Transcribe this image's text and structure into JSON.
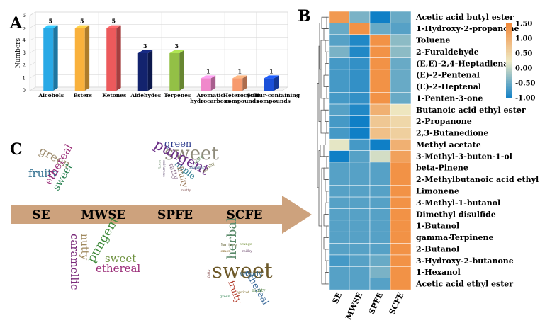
{
  "panel_labels": {
    "a": "A",
    "b": "B",
    "c": "C"
  },
  "chart_data": [
    {
      "panel": "A",
      "type": "bar",
      "title": "",
      "xlabel": "",
      "ylabel": "Numbers",
      "ylim": [
        0,
        6
      ],
      "yticks": [
        0,
        1,
        2,
        3,
        4,
        5,
        6
      ],
      "grid": true,
      "legend": "none",
      "categories": [
        "Alcohols",
        "Esters",
        "Ketones",
        "Aldehydes",
        "Terpenes",
        "Aromatic hydrocarbons",
        "Heterocyclic compounds",
        "Sulfur-containing compounds"
      ],
      "values": [
        5,
        5,
        5,
        3,
        3,
        1,
        1,
        1
      ],
      "value_labels": [
        "5",
        "5",
        "5",
        "3",
        "3",
        "1",
        "1",
        "1"
      ],
      "category_labels": [
        [
          "Alcohols"
        ],
        [
          "Esters"
        ],
        [
          "Ketones"
        ],
        [
          "Aldehydes"
        ],
        [
          "Terpenes"
        ],
        [
          "Aromatic",
          "hydrocarbons"
        ],
        [
          "Heterocyclic",
          "compounds"
        ],
        [
          "Sulfur-containing",
          "compounds"
        ]
      ],
      "colors": [
        "#29a9e6",
        "#f9b13c",
        "#ec5a5c",
        "#13236e",
        "#93c046",
        "#f088cb",
        "#f79a6e",
        "#1a4fd8"
      ]
    },
    {
      "panel": "B",
      "type": "heatmap",
      "title": "",
      "columns": [
        "SE",
        "MWSE",
        "SPFE",
        "SCFE"
      ],
      "rows": [
        "Acetic acid butyl ester",
        "1-Hydroxy-2-propanone",
        "Toluene",
        "2-Furaldehyde",
        "(E,E)-2,4-Heptadienal",
        "(E)-2-Pentenal",
        "(E)-2-Heptenal",
        "1-Penten-3-one",
        "Butanoic acid ethyl ester",
        "2-Propanone",
        "2,3-Butanedione",
        "Methyl acetate",
        "3-Methyl-3-buten-1-ol",
        "beta-Pinene",
        "2-Methylbutanoic acid ethyl ester",
        "Limonene",
        "3-Methyl-1-butanol",
        "Dimethyl disulfide",
        "1-Butanol",
        "gamma-Terpinene",
        "2-Butanol",
        "3-Hydroxy-2-butanone",
        "1-Hexanol",
        "Acetic acid ethyl ester"
      ],
      "values": [
        [
          1.3,
          -0.4,
          -1.0,
          -0.5
        ],
        [
          -0.5,
          1.4,
          -0.5,
          -0.6
        ],
        [
          -0.6,
          -0.9,
          1.4,
          -0.3
        ],
        [
          -0.4,
          -0.9,
          1.4,
          -0.3
        ],
        [
          -0.7,
          -0.8,
          1.4,
          -0.5
        ],
        [
          -0.7,
          -0.8,
          1.4,
          -0.5
        ],
        [
          -0.7,
          -0.8,
          1.4,
          -0.5
        ],
        [
          -0.7,
          -0.8,
          1.4,
          -0.5
        ],
        [
          -0.6,
          -0.9,
          1.0,
          0.3
        ],
        [
          -0.7,
          -1.0,
          0.7,
          0.5
        ],
        [
          -0.7,
          -1.0,
          0.8,
          0.6
        ],
        [
          0.2,
          -0.7,
          -1.0,
          1.0
        ],
        [
          -1.0,
          -0.6,
          0.1,
          1.2
        ],
        [
          -0.6,
          -0.6,
          -0.6,
          1.4
        ],
        [
          -0.6,
          -0.6,
          -0.6,
          1.4
        ],
        [
          -0.6,
          -0.6,
          -0.6,
          1.4
        ],
        [
          -0.6,
          -0.6,
          -0.6,
          1.4
        ],
        [
          -0.6,
          -0.6,
          -0.6,
          1.4
        ],
        [
          -0.6,
          -0.6,
          -0.6,
          1.4
        ],
        [
          -0.6,
          -0.6,
          -0.6,
          1.4
        ],
        [
          -0.6,
          -0.6,
          -0.6,
          1.4
        ],
        [
          -0.7,
          -0.6,
          -0.5,
          1.4
        ],
        [
          -0.6,
          -0.6,
          -0.4,
          1.4
        ],
        [
          -0.6,
          -0.6,
          -0.6,
          1.4
        ]
      ],
      "colorbar": {
        "min": -1.0,
        "max": 1.5,
        "ticks": [
          "1.50",
          "1.00",
          "0.50",
          "0.00",
          "-0.50",
          "-1.00"
        ],
        "low_color": "#0f7fc6",
        "mid_color": "#eeeac5",
        "high_color": "#f28a3b"
      },
      "dendrogram": "left"
    }
  ],
  "panel_c": {
    "arrow_color": "#cda27d",
    "methods": [
      "SE",
      "MWSE",
      "SPFE",
      "SCFE"
    ],
    "clouds": [
      {
        "method": "SE",
        "words": [
          "green",
          "fruity",
          "ethereal",
          "sweet"
        ]
      },
      {
        "method": "MWSE",
        "words": [
          "nutty",
          "caramellic",
          "pungent",
          "sweet",
          "ethereal"
        ]
      },
      {
        "method": "SPFE",
        "words": [
          "sweet",
          "green",
          "pungent",
          "apple",
          "fatty",
          "fruity",
          "waxy",
          "sulfurous",
          "leafy",
          "nutty",
          "earthy",
          "balsamic"
        ]
      },
      {
        "method": "SCFE",
        "words": [
          "sweet",
          "herbal",
          "ethereal",
          "fruity",
          "woody",
          "buttery",
          "orange",
          "lemon",
          "milky",
          "musty",
          "fatty",
          "apricot",
          "green"
        ]
      }
    ]
  }
}
